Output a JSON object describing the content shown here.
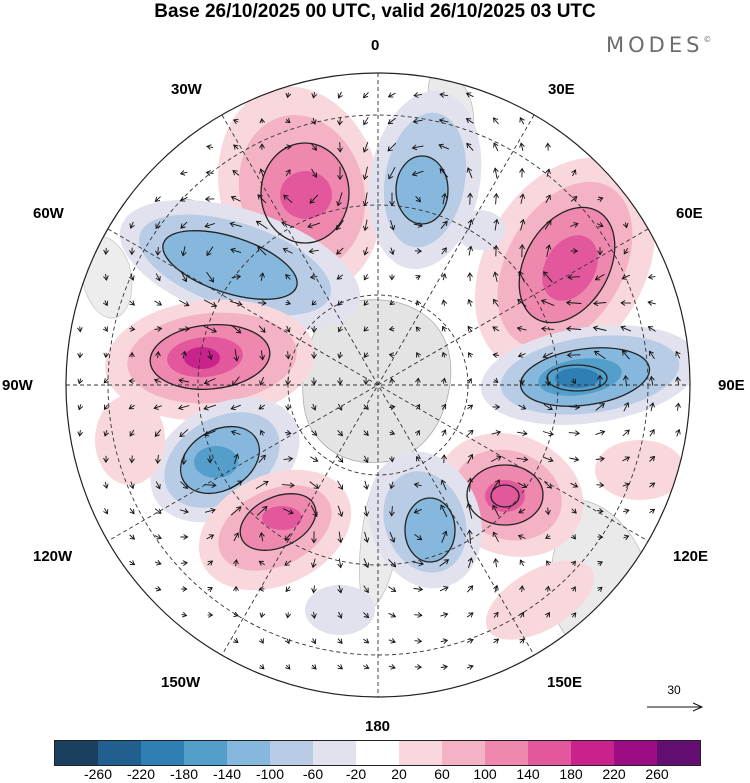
{
  "title": "Base 26/10/2025 00 UTC, valid 26/10/2025 03 UTC",
  "brand": {
    "name": "MODES",
    "mark": "©"
  },
  "map": {
    "projection": "south polar stereographic",
    "longitude_labels": {
      "top": "0",
      "top_left": "30W",
      "top_right": "30E",
      "upper_left": "60W",
      "upper_right": "60E",
      "left": "90W",
      "right": "90E",
      "lower_left": "120W",
      "lower_right": "120E",
      "bottom_left": "150W",
      "bottom_right": "150E",
      "bottom": "180"
    },
    "reference_vector": {
      "value": "30"
    }
  },
  "colorbar": {
    "colors": [
      "#1b3f5e",
      "#215f8f",
      "#2f7fb4",
      "#539ecb",
      "#86b7dc",
      "#b8cce6",
      "#e2e2ef",
      "#ffffff",
      "#f9d8dd",
      "#f4b3c4",
      "#ee88ae",
      "#e3589c",
      "#c9228c",
      "#9c0c85",
      "#620e72"
    ],
    "tick_labels": [
      "-260",
      "-220",
      "-180",
      "-140",
      "-100",
      "-60",
      "-20",
      "20",
      "60",
      "100",
      "140",
      "180",
      "220",
      "260"
    ]
  }
}
